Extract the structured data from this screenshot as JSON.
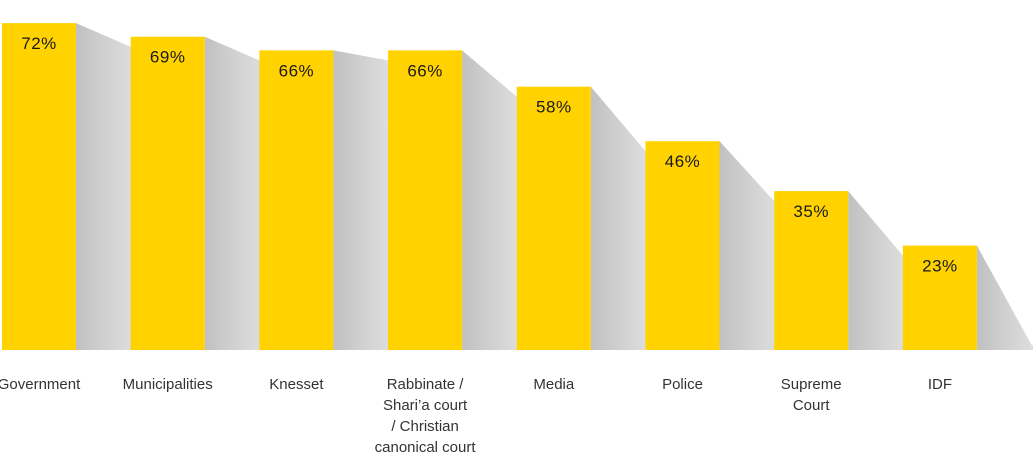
{
  "chart_data": {
    "type": "bar",
    "categories": [
      "Government",
      "Municipalities",
      "Knesset",
      "Rabbinate / Shari’a court / Christian canonical court",
      "Media",
      "Police",
      "Supreme Court",
      "IDF"
    ],
    "category_lines": [
      [
        "Government"
      ],
      [
        "Municipalities"
      ],
      [
        "Knesset"
      ],
      [
        "Rabbinate /",
        "Shari’a court",
        "/ Christian",
        "canonical court"
      ],
      [
        "Media"
      ],
      [
        "Police"
      ],
      [
        "Supreme",
        "Court"
      ],
      [
        "IDF"
      ]
    ],
    "values": [
      72,
      69,
      66,
      66,
      58,
      46,
      35,
      23
    ],
    "value_labels": [
      "72%",
      "69%",
      "66%",
      "66%",
      "58%",
      "46%",
      "35%",
      "23%"
    ],
    "ylim": [
      0,
      100
    ],
    "grid": false,
    "colors": {
      "bar": "#FFD200",
      "shadow": "#c9c9c9"
    }
  }
}
